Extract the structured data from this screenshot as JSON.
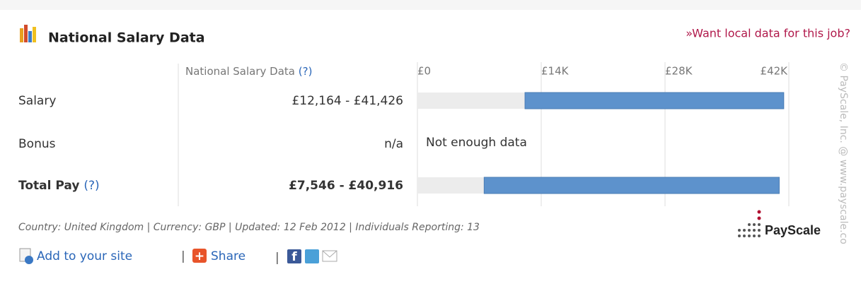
{
  "header": {
    "title": "National Salary Data",
    "local_link": "»Want local data for this job?"
  },
  "chart_data": {
    "type": "range-bar",
    "column_header": "National Salary Data",
    "column_header_help": "(?)",
    "categories": [
      "Salary",
      "Bonus",
      "Total Pay"
    ],
    "row_help": "(?)",
    "low": [
      12164,
      null,
      7546
    ],
    "high": [
      41426,
      null,
      40916
    ],
    "value_labels": [
      "£12,164 - £41,426",
      "n/a",
      "£7,546 - £40,916"
    ],
    "annotation": "Not enough data",
    "color": "#5d92cc",
    "track_color": "#ececec",
    "xlim": [
      0,
      42000
    ],
    "xticks": [
      {
        "value": 0,
        "label": "£0"
      },
      {
        "value": 14000,
        "label": "£14K"
      },
      {
        "value": 28000,
        "label": "£28K"
      },
      {
        "value": 42000,
        "label": "£42K"
      }
    ],
    "grid": true
  },
  "footer": {
    "info": "Country: United Kingdom | Currency: GBP | Updated: 12 Feb 2012 | Individuals Reporting: 13",
    "add_link": "Add to your site",
    "share_link": "Share",
    "logo": "PayScale",
    "watermark": "© PayScale, Inc. @ www.payscale.co"
  }
}
